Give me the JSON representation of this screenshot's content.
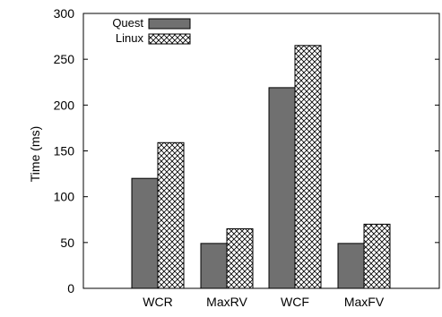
{
  "chart_data": {
    "type": "bar",
    "title": "",
    "xlabel": "",
    "ylabel": "Time (ms)",
    "ylim": [
      0,
      300
    ],
    "yticks": [
      0,
      50,
      100,
      150,
      200,
      250,
      300
    ],
    "categories": [
      "WCR",
      "MaxRV",
      "WCF",
      "MaxFV"
    ],
    "series": [
      {
        "name": "Quest",
        "values": [
          120,
          49,
          219,
          49
        ],
        "color": "#707070",
        "pattern": "solid"
      },
      {
        "name": "Linux",
        "values": [
          159,
          65,
          265,
          70
        ],
        "color": "#ffffff",
        "pattern": "crosshatch"
      }
    ],
    "legend_position": "top-left",
    "grid": false
  }
}
